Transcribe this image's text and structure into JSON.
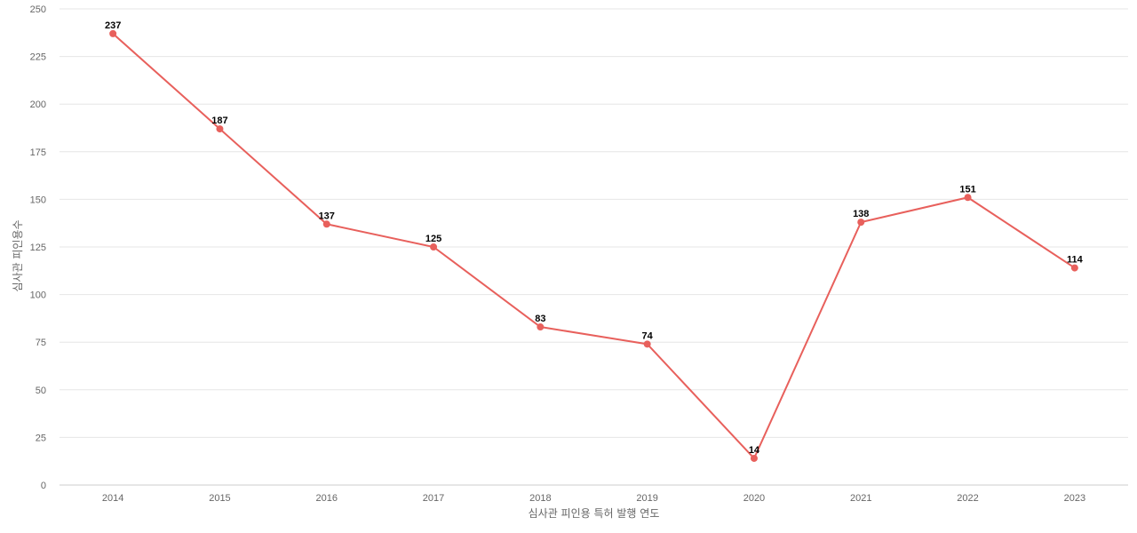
{
  "chart_data": {
    "type": "line",
    "title": "",
    "xlabel": "심사관 피인용 특허 발행 연도",
    "ylabel": "심사관 피인용수",
    "categories": [
      "2014",
      "2015",
      "2016",
      "2017",
      "2018",
      "2019",
      "2020",
      "2021",
      "2022",
      "2023"
    ],
    "series": [
      {
        "values": [
          237,
          187,
          137,
          125,
          83,
          74,
          14,
          138,
          151,
          114
        ],
        "color": "#e8605c"
      }
    ],
    "ylim": [
      0,
      250
    ],
    "yticks": [
      0,
      25,
      50,
      75,
      100,
      125,
      150,
      175,
      200,
      225,
      250
    ],
    "grid": true,
    "data_labels": true,
    "legend": "none"
  }
}
